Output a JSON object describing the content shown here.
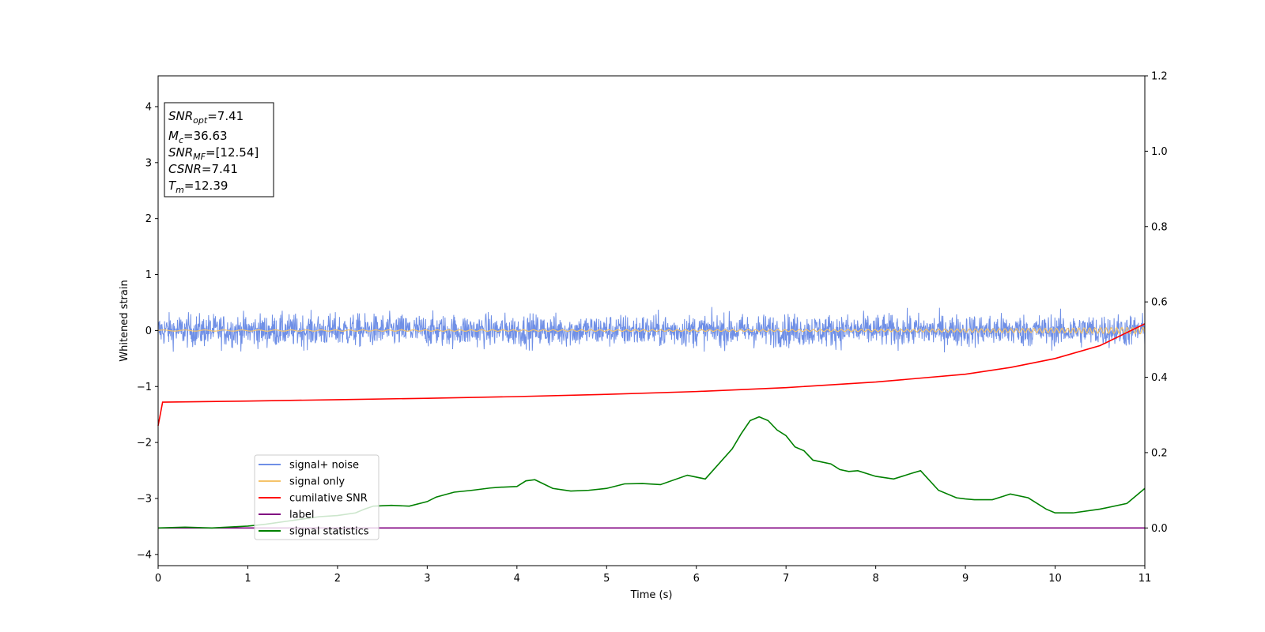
{
  "chart_data": {
    "type": "line",
    "xlabel": "Time (s)",
    "ylabel": "Whitened strain",
    "xlim": [
      0,
      11
    ],
    "ylim": [
      -4.2,
      4.55
    ],
    "y2lim": [
      -0.1,
      1.2
    ],
    "xticks": [
      0,
      1,
      2,
      3,
      4,
      5,
      6,
      7,
      8,
      9,
      10,
      11
    ],
    "yticks": [
      -4,
      -3,
      -2,
      -1,
      0,
      1,
      2,
      3,
      4
    ],
    "yticks_right": [
      "0.0",
      "0.2",
      "0.4",
      "0.6",
      "0.8",
      "1.0",
      "1.2"
    ],
    "yticks_right_values": [
      0.0,
      0.2,
      0.4,
      0.6,
      0.8,
      1.0,
      1.2
    ],
    "grid": false,
    "legend_position": "lower-left",
    "annotation_box": [
      {
        "base": "SNR",
        "sub": "opt",
        "rest": "=7.41"
      },
      {
        "base": "M",
        "sub": "c",
        "rest": "=36.63"
      },
      {
        "base": "SNR",
        "sub": "MF",
        "rest": "=[12.54]"
      },
      {
        "base": "CSNR",
        "sub": "",
        "rest": "=7.41"
      },
      {
        "base": "T",
        "sub": "m",
        "rest": "=12.39"
      }
    ],
    "series": [
      {
        "name": "signal+ noise",
        "color": "#6f8fe6",
        "axis": "left",
        "kind": "noise",
        "mean": 0.0,
        "typical_amplitude": 0.55,
        "max": 1.22,
        "min": -1.0
      },
      {
        "name": "signal only",
        "color": "#f5c36a",
        "axis": "left",
        "kind": "chirp",
        "x": [
          0,
          6,
          8,
          9,
          10,
          10.5,
          11
        ],
        "amplitude": [
          0.01,
          0.015,
          0.02,
          0.03,
          0.04,
          0.05,
          0.06
        ]
      },
      {
        "name": "cumilative SNR",
        "color": "#ff0000",
        "axis": "left",
        "x": [
          0,
          0.05,
          1,
          2,
          3,
          4,
          5,
          6,
          7,
          8,
          9,
          9.5,
          10,
          10.5,
          11
        ],
        "values": [
          -1.7,
          -1.28,
          -1.26,
          -1.235,
          -1.21,
          -1.18,
          -1.14,
          -1.09,
          -1.02,
          -0.92,
          -0.78,
          -0.66,
          -0.5,
          -0.27,
          0.12
        ]
      },
      {
        "name": "label",
        "color": "#800080",
        "axis": "right",
        "x": [
          0,
          11
        ],
        "values": [
          0.0,
          0.0
        ]
      },
      {
        "name": "signal statistics",
        "color": "#008000",
        "axis": "right",
        "x": [
          0,
          0.3,
          0.6,
          1.0,
          1.2,
          1.5,
          1.8,
          2.0,
          2.2,
          2.3,
          2.4,
          2.6,
          2.8,
          3.0,
          3.1,
          3.3,
          3.5,
          3.7,
          3.8,
          4.0,
          4.1,
          4.2,
          4.4,
          4.6,
          4.8,
          5.0,
          5.2,
          5.4,
          5.6,
          5.9,
          6.1,
          6.4,
          6.5,
          6.6,
          6.7,
          6.8,
          6.9,
          7.0,
          7.1,
          7.2,
          7.3,
          7.5,
          7.6,
          7.7,
          7.8,
          8.0,
          8.2,
          8.4,
          8.5,
          8.7,
          8.9,
          9.0,
          9.1,
          9.3,
          9.5,
          9.7,
          9.9,
          10.0,
          10.2,
          10.5,
          10.8,
          11.0
        ],
        "values": [
          0.0,
          0.002,
          0.0,
          0.005,
          0.01,
          0.02,
          0.03,
          0.033,
          0.04,
          0.05,
          0.058,
          0.06,
          0.058,
          0.07,
          0.082,
          0.095,
          0.1,
          0.106,
          0.108,
          0.11,
          0.125,
          0.128,
          0.105,
          0.098,
          0.1,
          0.105,
          0.117,
          0.118,
          0.115,
          0.14,
          0.13,
          0.21,
          0.25,
          0.285,
          0.295,
          0.285,
          0.26,
          0.245,
          0.215,
          0.205,
          0.18,
          0.17,
          0.155,
          0.15,
          0.152,
          0.137,
          0.13,
          0.145,
          0.152,
          0.1,
          0.08,
          0.077,
          0.075,
          0.075,
          0.09,
          0.08,
          0.05,
          0.04,
          0.04,
          0.05,
          0.065,
          0.105
        ]
      }
    ]
  }
}
